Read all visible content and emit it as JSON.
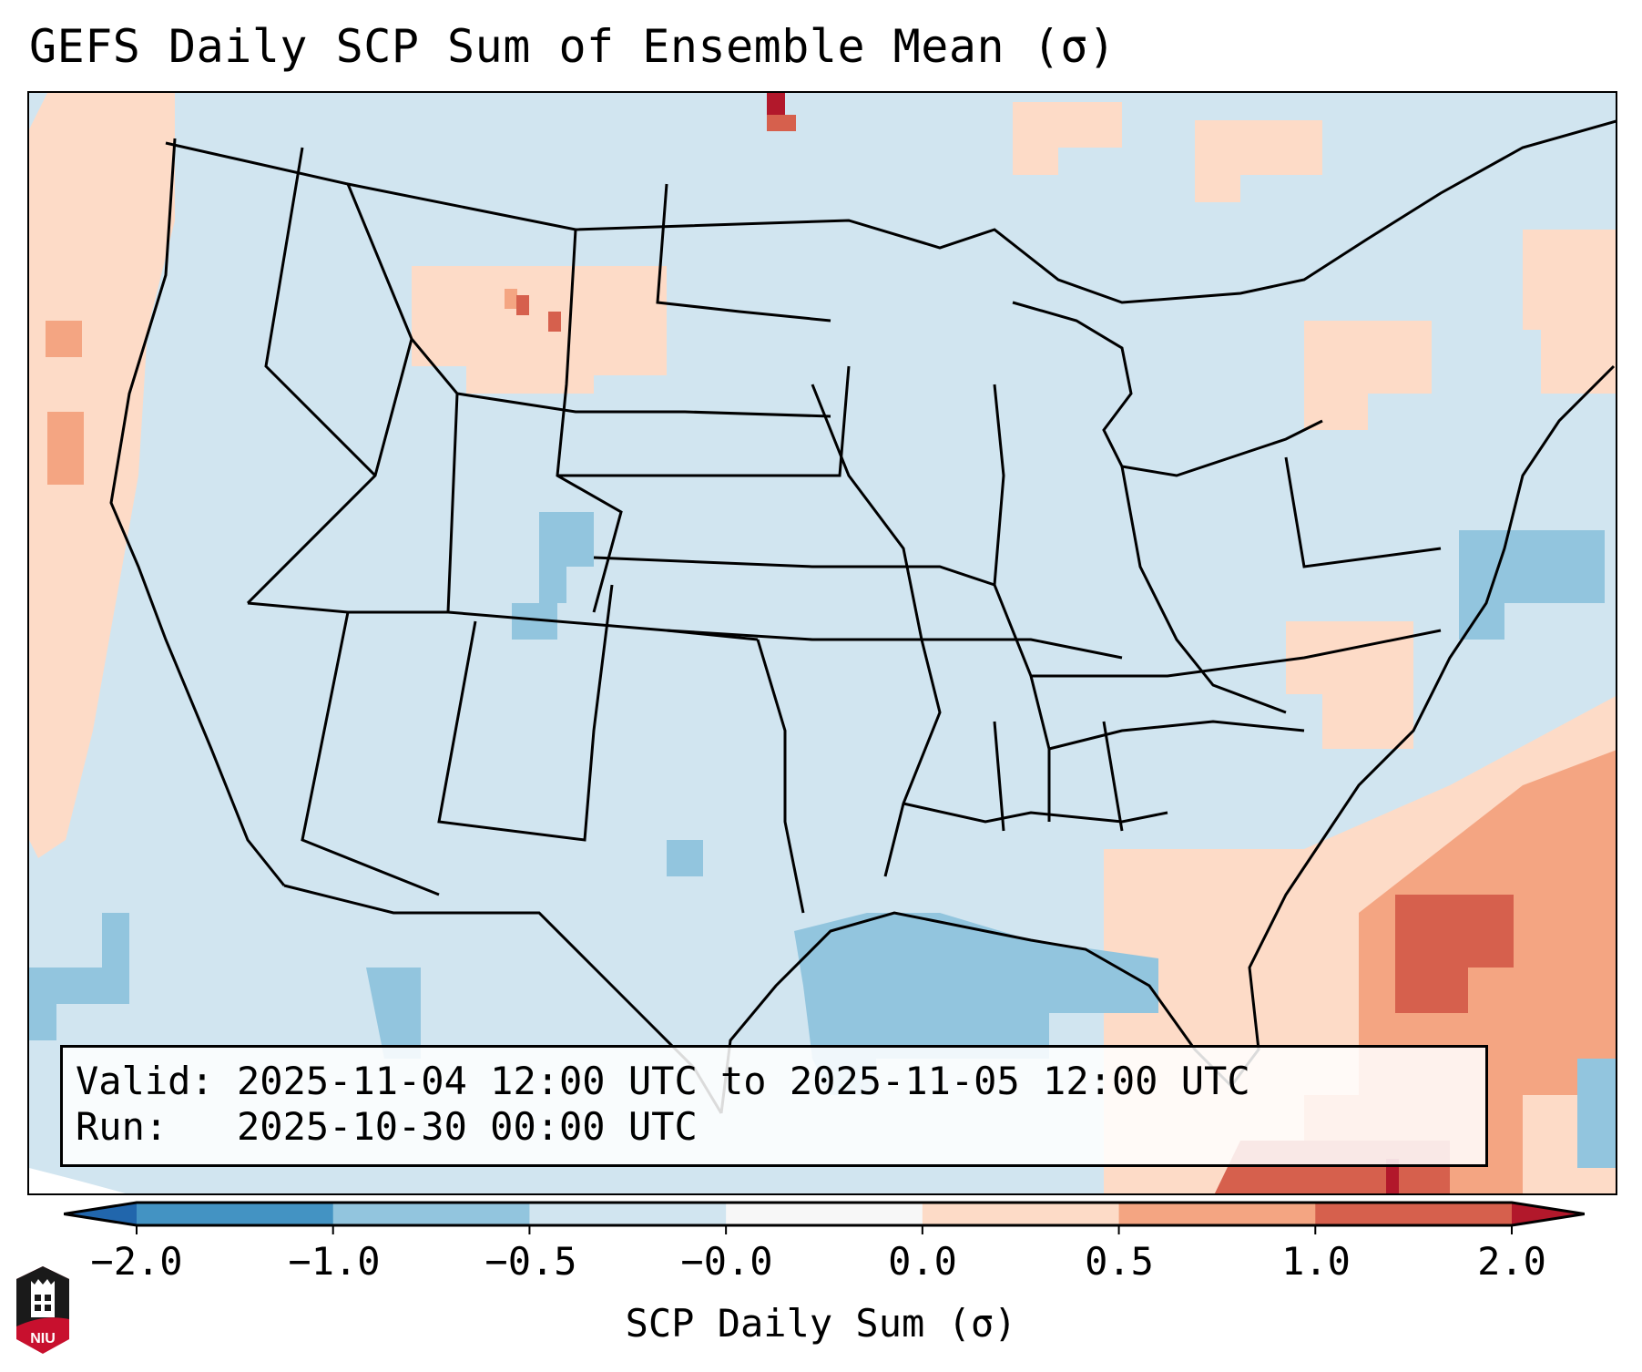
{
  "title": "GEFS Daily SCP Sum of Ensemble Mean (σ)",
  "info": {
    "valid_label": "Valid:",
    "valid_value": "2025-11-04 12:00 UTC to 2025-11-05 12:00 UTC",
    "run_label": "Run:",
    "run_value": "2025-10-30 00:00 UTC"
  },
  "colorbar": {
    "label": "SCP Daily Sum (σ)",
    "ticks": [
      "−2.0",
      "−1.0",
      "−0.5",
      "−0.0",
      "0.0",
      "0.5",
      "1.0",
      "2.0"
    ],
    "bins": [
      {
        "range": "< -2.0",
        "color": "#2166ac"
      },
      {
        "range": "-2.0 to -1.0",
        "color": "#4393c3"
      },
      {
        "range": "-1.0 to -0.5",
        "color": "#92c5de"
      },
      {
        "range": "-0.5 to -0.0",
        "color": "#d1e5f0"
      },
      {
        "range": "-0.0 to 0.0",
        "color": "#f7f7f7"
      },
      {
        "range": "0.0 to 0.5",
        "color": "#fddbc7"
      },
      {
        "range": "0.5 to 1.0",
        "color": "#f4a582"
      },
      {
        "range": "1.0 to 2.0",
        "color": "#d6604d"
      },
      {
        "range": "> 2.0",
        "color": "#b2182b"
      }
    ]
  },
  "map": {
    "region": "Continental United States",
    "background_color": "#d1e5f0",
    "features": [
      {
        "name": "pacific-northwest-offshore-positive",
        "level": "0.0 to 0.5"
      },
      {
        "name": "montana-scattered-positive",
        "level": "0.5 to 1.0"
      },
      {
        "name": "north-dakota-canada-max",
        "level": "> 2.0"
      },
      {
        "name": "colorado-negative",
        "level": "-1.0 to -0.5"
      },
      {
        "name": "gulf-of-mexico-negative",
        "level": "-1.0 to -0.5"
      },
      {
        "name": "southeast-florida-atlantic-positive",
        "level": "1.0 to 2.0"
      },
      {
        "name": "atlantic-northeast-negative",
        "level": "-1.0 to -0.5"
      }
    ]
  },
  "logo": {
    "text": "NIU"
  }
}
